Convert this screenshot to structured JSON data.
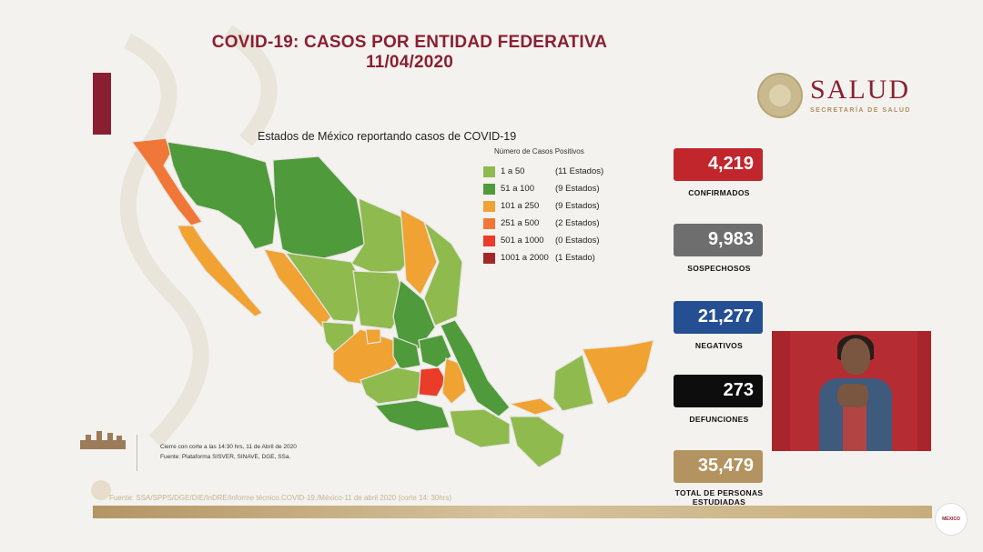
{
  "header": {
    "title_line1": "COVID-19: CASOS POR ENTIDAD FEDERATIVA",
    "title_line2": "11/04/2020"
  },
  "logo": {
    "word": "SALUD",
    "sub": "SECRETARÍA DE SALUD"
  },
  "chart_data": {
    "type": "choropleth-map",
    "title": "Estados de México reportando casos de COVID-19",
    "legend_title": "Número de Casos Positivos",
    "legend": [
      {
        "range": "1 a 50",
        "count": "(11 Estados)",
        "color": "#8fba4e"
      },
      {
        "range": "51 a 100",
        "count": "(9 Estados)",
        "color": "#4f9a3a"
      },
      {
        "range": "101 a 250",
        "count": "(9 Estados)",
        "color": "#f0a233"
      },
      {
        "range": "251 a 500",
        "count": "(2 Estados)",
        "color": "#f17738"
      },
      {
        "range": "501 a 1000",
        "count": "(0 Estados)",
        "color": "#ea3c28"
      },
      {
        "range": "1001 a 2000",
        "count": "(1 Estado)",
        "color": "#a3272a"
      }
    ]
  },
  "stats": [
    {
      "value": "4,219",
      "label": "CONFIRMADOS",
      "color": "#c0262b"
    },
    {
      "value": "9,983",
      "label": "SOSPECHOSOS",
      "color": "#6e6e6e"
    },
    {
      "value": "21,277",
      "label": "NEGATIVOS",
      "color": "#244f93"
    },
    {
      "value": "273",
      "label": "DEFUNCIONES",
      "color": "#0d0d0d"
    },
    {
      "value": "35,479",
      "label": "TOTAL DE PERSONAS ESTUDIADAS",
      "color": "#b39360"
    }
  ],
  "footnote": {
    "line1": "Cierre con corte a las 14:30 hrs, 11 de Abril de 2020",
    "line2": "Fuente: Plataforma SISVER, SINAVE, DGE, SSa."
  },
  "source": "Fuente: SSA/SPPS/DGE/DIE/InDRE/Informe técnico.COVID-19./México-11 de abril 2020 (corte 14: 30hrs)",
  "gob_logo_text": "MÉXICO"
}
